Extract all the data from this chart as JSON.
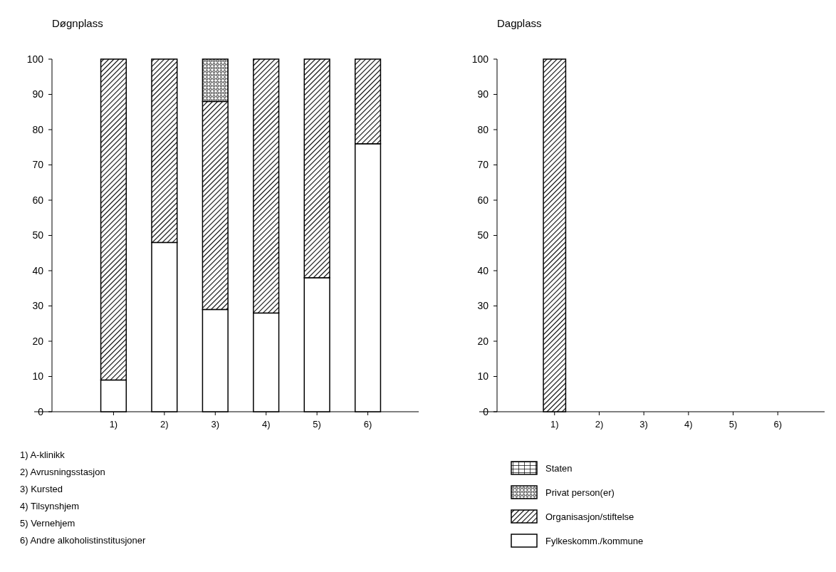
{
  "chart_data": [
    {
      "type": "bar",
      "title": "Døgnplass",
      "categories": [
        "1)",
        "2)",
        "3)",
        "4)",
        "5)",
        "6)"
      ],
      "stacked": true,
      "ylim": [
        0,
        100
      ],
      "yticks": [
        0,
        10,
        20,
        30,
        40,
        50,
        60,
        70,
        80,
        90,
        100
      ],
      "grid": false,
      "legend": false,
      "series": [
        {
          "color": "#ffffff",
          "values": [
            9,
            48,
            29,
            28,
            38,
            76
          ]
        },
        {
          "color": "#000000",
          "values": [
            91,
            52,
            59,
            72,
            62,
            24
          ]
        },
        {
          "color": "#000000",
          "values": [
            0,
            0,
            12,
            0,
            0,
            0
          ]
        },
        {
          "color": "#000000",
          "values": [
            0,
            0,
            0,
            0,
            0,
            0
          ]
        }
      ],
      "annotations": [
        "1) A-klinikk",
        "2) Avrusningsstasjon",
        "3) Kursted",
        "4) Tilsynshjem",
        "5) Vernehjem",
        "6) Andre alkoholistinstitusjoner"
      ]
    },
    {
      "type": "bar",
      "title": "Dagplass",
      "categories": [
        "1)",
        "2)",
        "3)",
        "4)",
        "5)",
        "6)"
      ],
      "stacked": true,
      "ylim": [
        0,
        100
      ],
      "yticks": [
        0,
        10,
        20,
        30,
        40,
        50,
        60,
        70,
        80,
        90,
        100
      ],
      "grid": false,
      "legend": "bottom",
      "series": [
        {
          "name": "Fylkeskomm./kommune",
          "color": "#ffffff",
          "values": [
            0,
            0,
            0,
            0,
            0,
            0
          ]
        },
        {
          "name": "Organisasjon/stiftelse",
          "color": "#000000",
          "values": [
            100,
            0,
            0,
            0,
            0,
            0
          ]
        },
        {
          "name": "Privat person(er)",
          "color": "#000000",
          "values": [
            0,
            0,
            0,
            0,
            0,
            0
          ]
        },
        {
          "name": "Staten",
          "color": "#000000",
          "values": [
            0,
            0,
            0,
            0,
            0,
            0
          ]
        }
      ]
    }
  ]
}
